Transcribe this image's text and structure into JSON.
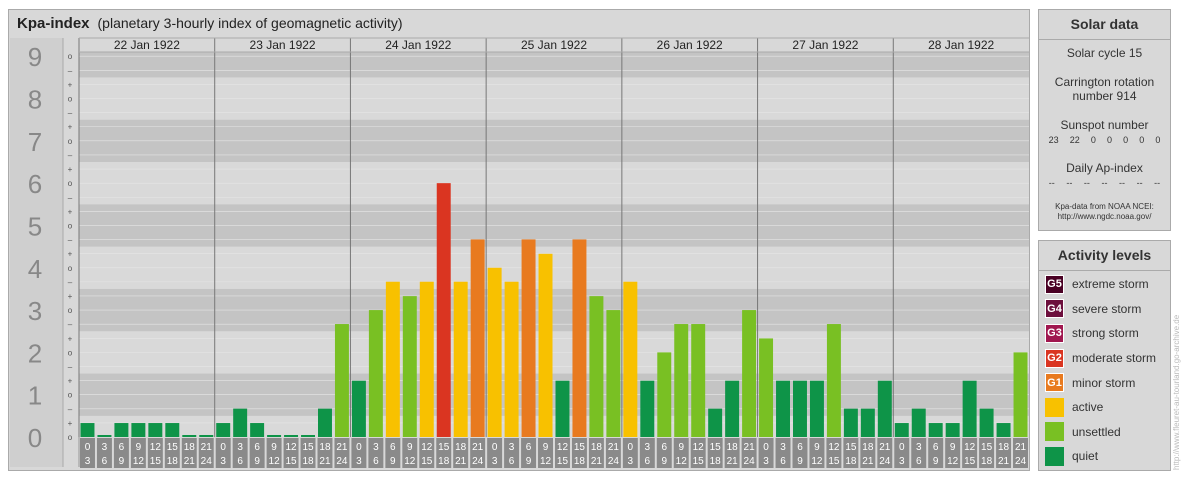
{
  "title": {
    "main": "Kpa-index",
    "sub": "(planetary 3-hourly index of geomagnetic activity)"
  },
  "chart_data": {
    "type": "bar",
    "days": [
      "22 Jan 1922",
      "23 Jan 1922",
      "24 Jan 1922",
      "25 Jan 1922",
      "26 Jan 1922",
      "27 Jan 1922",
      "28 Jan 1922"
    ],
    "hour_ranges": [
      [
        "0",
        "3"
      ],
      [
        "3",
        "6"
      ],
      [
        "6",
        "9"
      ],
      [
        "9",
        "12"
      ],
      [
        "12",
        "15"
      ],
      [
        "15",
        "18"
      ],
      [
        "18",
        "21"
      ],
      [
        "21",
        "24"
      ]
    ],
    "yticks": [
      "0",
      "1",
      "2",
      "3",
      "4",
      "5",
      "6",
      "7",
      "8",
      "9"
    ],
    "subticks": [
      "o",
      "+",
      "–",
      "o",
      "+",
      "–",
      "o",
      "+",
      "–",
      "o",
      "+",
      "–",
      "o",
      "+",
      "–",
      "o",
      "+",
      "–",
      "o",
      "+",
      "–",
      "o",
      "+",
      "–",
      "o",
      "+",
      "–",
      "o"
    ],
    "ylim": [
      0,
      9
    ],
    "values": [
      0.33,
      0,
      0.33,
      0.33,
      0.33,
      0.33,
      0,
      0,
      0.33,
      0.67,
      0.33,
      0,
      0,
      0,
      0.67,
      2.67,
      1.33,
      3,
      3.67,
      3.33,
      3.67,
      6,
      3.67,
      4.67,
      4,
      3.67,
      4.67,
      4.33,
      1.33,
      4.67,
      3.33,
      3,
      3.67,
      1.33,
      2,
      2.67,
      2.67,
      0.67,
      1.33,
      3,
      2.33,
      1.33,
      1.33,
      1.33,
      2.67,
      0.67,
      0.67,
      1.33,
      0.33,
      0.67,
      0.33,
      0.33,
      1.33,
      0.67,
      0.33,
      2
    ],
    "level_colors": {
      "quiet": "#0e9448",
      "unsettled": "#79c023",
      "active": "#f8c100",
      "minor": "#e87a1f",
      "moderate": "#da3521",
      "strong": "#a0174f",
      "severe": "#6d0f3d",
      "extreme": "#4a0124"
    }
  },
  "solar": {
    "header": "Solar data",
    "cycle": "Solar cycle 15",
    "rotation_l1": "Carrington rotation",
    "rotation_l2": "number 914",
    "ssn_label": "Sunspot number",
    "ssn": [
      "23",
      "22",
      "0",
      "0",
      "0",
      "0",
      "0"
    ],
    "ap_label": "Daily Ap-index",
    "ap": [
      "--",
      "--",
      "--",
      "--",
      "--",
      "--",
      "--"
    ],
    "credit_l1": "Kpa-data from NOAA NCEI:",
    "credit_l2": "http://www.ngdc.noaa.gov/"
  },
  "levels": {
    "header": "Activity levels",
    "items": [
      {
        "badge": "G5",
        "label": "extreme storm",
        "color": "#4a0124"
      },
      {
        "badge": "G4",
        "label": "severe storm",
        "color": "#6d0f3d"
      },
      {
        "badge": "G3",
        "label": "strong storm",
        "color": "#a0174f"
      },
      {
        "badge": "G2",
        "label": "moderate storm",
        "color": "#da3521"
      },
      {
        "badge": "G1",
        "label": "minor storm",
        "color": "#e87a1f"
      },
      {
        "badge": "",
        "label": "active",
        "color": "#f8c100"
      },
      {
        "badge": "",
        "label": "unsettled",
        "color": "#79c023"
      },
      {
        "badge": "",
        "label": "quiet",
        "color": "#0e9448"
      }
    ]
  },
  "watermark": "http://www.fleuret-au-tourland.go-archive.de"
}
